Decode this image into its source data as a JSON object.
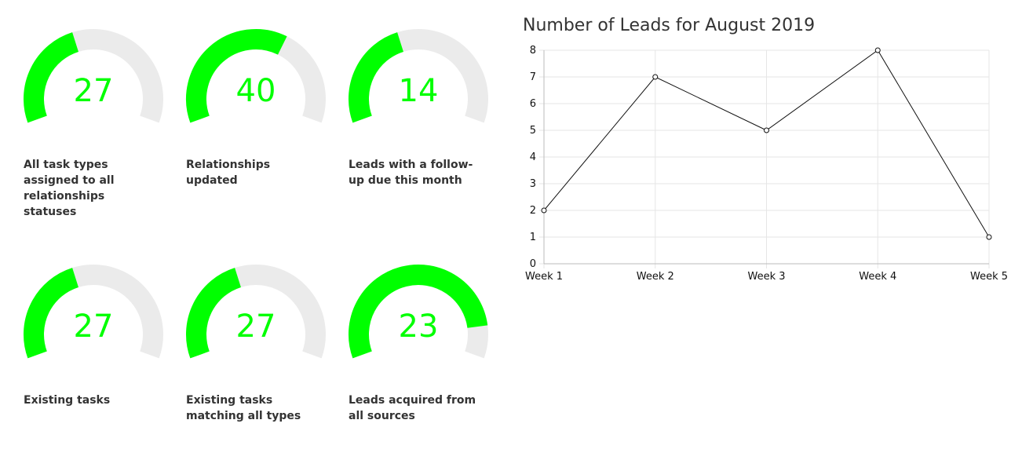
{
  "colors": {
    "gauge_fill": "#00ff00",
    "gauge_track": "#ebebeb",
    "gauge_value_text": "#00ff00",
    "label_text": "#333333",
    "line": "#111111",
    "grid": "#e6e6e6"
  },
  "gauges": [
    {
      "value": "27",
      "fraction": 0.42,
      "label": "All task types assigned to all relationships statuses"
    },
    {
      "value": "40",
      "fraction": 0.62,
      "label": "Relationships updated"
    },
    {
      "value": "14",
      "fraction": 0.42,
      "label": "Leads with a follow-up due this month"
    },
    {
      "value": "27",
      "fraction": 0.42,
      "label": "Existing tasks"
    },
    {
      "value": "27",
      "fraction": 0.42,
      "label": "Existing tasks matching all types"
    },
    {
      "value": "23",
      "fraction": 0.875,
      "label": "Leads acquired from all sources"
    }
  ],
  "chart_data": {
    "type": "line",
    "title": "Number of Leads for August 2019",
    "categories": [
      "Week 1",
      "Week 2",
      "Week 3",
      "Week 4",
      "Week 5"
    ],
    "values": [
      2,
      7,
      5,
      8,
      1
    ],
    "ylim": [
      0,
      8
    ],
    "yticks": [
      0,
      1,
      2,
      3,
      4,
      5,
      6,
      7,
      8
    ],
    "grid": true,
    "legend": "none"
  }
}
